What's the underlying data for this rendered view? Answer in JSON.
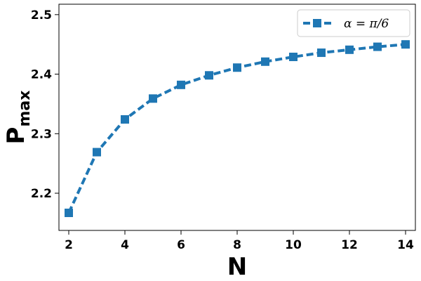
{
  "chart_data": {
    "type": "line",
    "xlabel": "N",
    "ylabel_main": "P",
    "ylabel_sub": "max",
    "xlim": [
      1.65,
      14.35
    ],
    "ylim": [
      2.1375,
      2.5175
    ],
    "xticks": [
      2,
      4,
      6,
      8,
      10,
      12,
      14
    ],
    "yticks": [
      2.2,
      2.3,
      2.4,
      2.5
    ],
    "ytick_labels": [
      "2.2",
      "2.3",
      "2.4",
      "2.5"
    ],
    "grid": false,
    "legend_position": "top-right",
    "series": [
      {
        "name": "α = π/6",
        "color": "#1f77b4",
        "line_style": "dashed",
        "marker": "square",
        "x": [
          2,
          3,
          4,
          5,
          6,
          7,
          8,
          9,
          10,
          11,
          12,
          13,
          14
        ],
        "y": [
          2.167,
          2.269,
          2.324,
          2.359,
          2.382,
          2.398,
          2.411,
          2.421,
          2.429,
          2.436,
          2.441,
          2.446,
          2.45
        ]
      }
    ]
  }
}
